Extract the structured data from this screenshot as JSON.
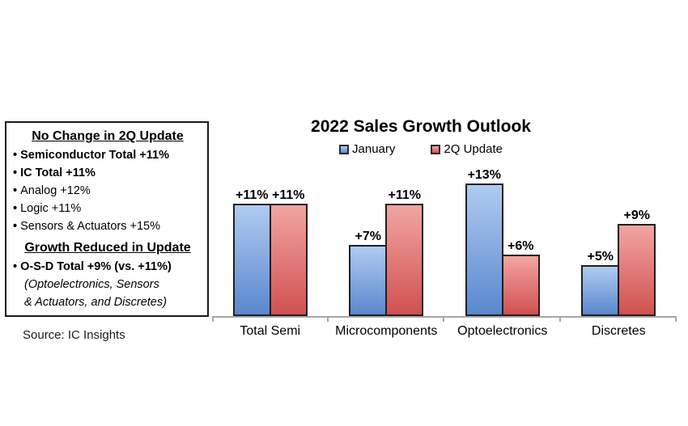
{
  "info_box": {
    "section1_title": "No Change in 2Q Update",
    "section1_items": [
      {
        "text": "Semiconductor Total +11%",
        "bold": true
      },
      {
        "text": "IC Total +11%",
        "bold": true
      },
      {
        "text": "Analog +12%",
        "bold": false
      },
      {
        "text": "Logic +11%",
        "bold": false
      },
      {
        "text": "Sensors & Actuators +15%",
        "bold": false
      }
    ],
    "section2_title": "Growth Reduced in Update",
    "section2_items": [
      {
        "text": "O-S-D Total +9% (vs. +11%)",
        "bold": true
      }
    ],
    "section2_note_lines": [
      "(Optoelectronics, Sensors",
      "& Actuators, and Discretes)"
    ]
  },
  "source": "Source: IC Insights",
  "chart_data": {
    "type": "bar",
    "title": "2022 Sales Growth Outlook",
    "categories": [
      "Total Semi",
      "Microcomponents",
      "Optoelectronics",
      "Discretes"
    ],
    "series": [
      {
        "name": "January",
        "values": [
          11,
          7,
          13,
          5
        ],
        "labels": [
          "+11%",
          "+7%",
          "+13%",
          "+5%"
        ],
        "fill_top": "#b0cbf0",
        "fill_bottom": "#5a87cf"
      },
      {
        "name": "2Q Update",
        "values": [
          11,
          11,
          6,
          9
        ],
        "labels": [
          "+11%",
          "+11%",
          "+6%",
          "+9%"
        ],
        "fill_top": "#f2a5a2",
        "fill_bottom": "#d05150"
      }
    ],
    "value_suffix": "%",
    "ylim": [
      0,
      14.9
    ],
    "grid": false,
    "y_axis_visible": false,
    "legend_position": "top",
    "colors": {
      "bar_border": "#1f1f1f",
      "axis": "#a6a6a6",
      "text": "#000000"
    }
  }
}
